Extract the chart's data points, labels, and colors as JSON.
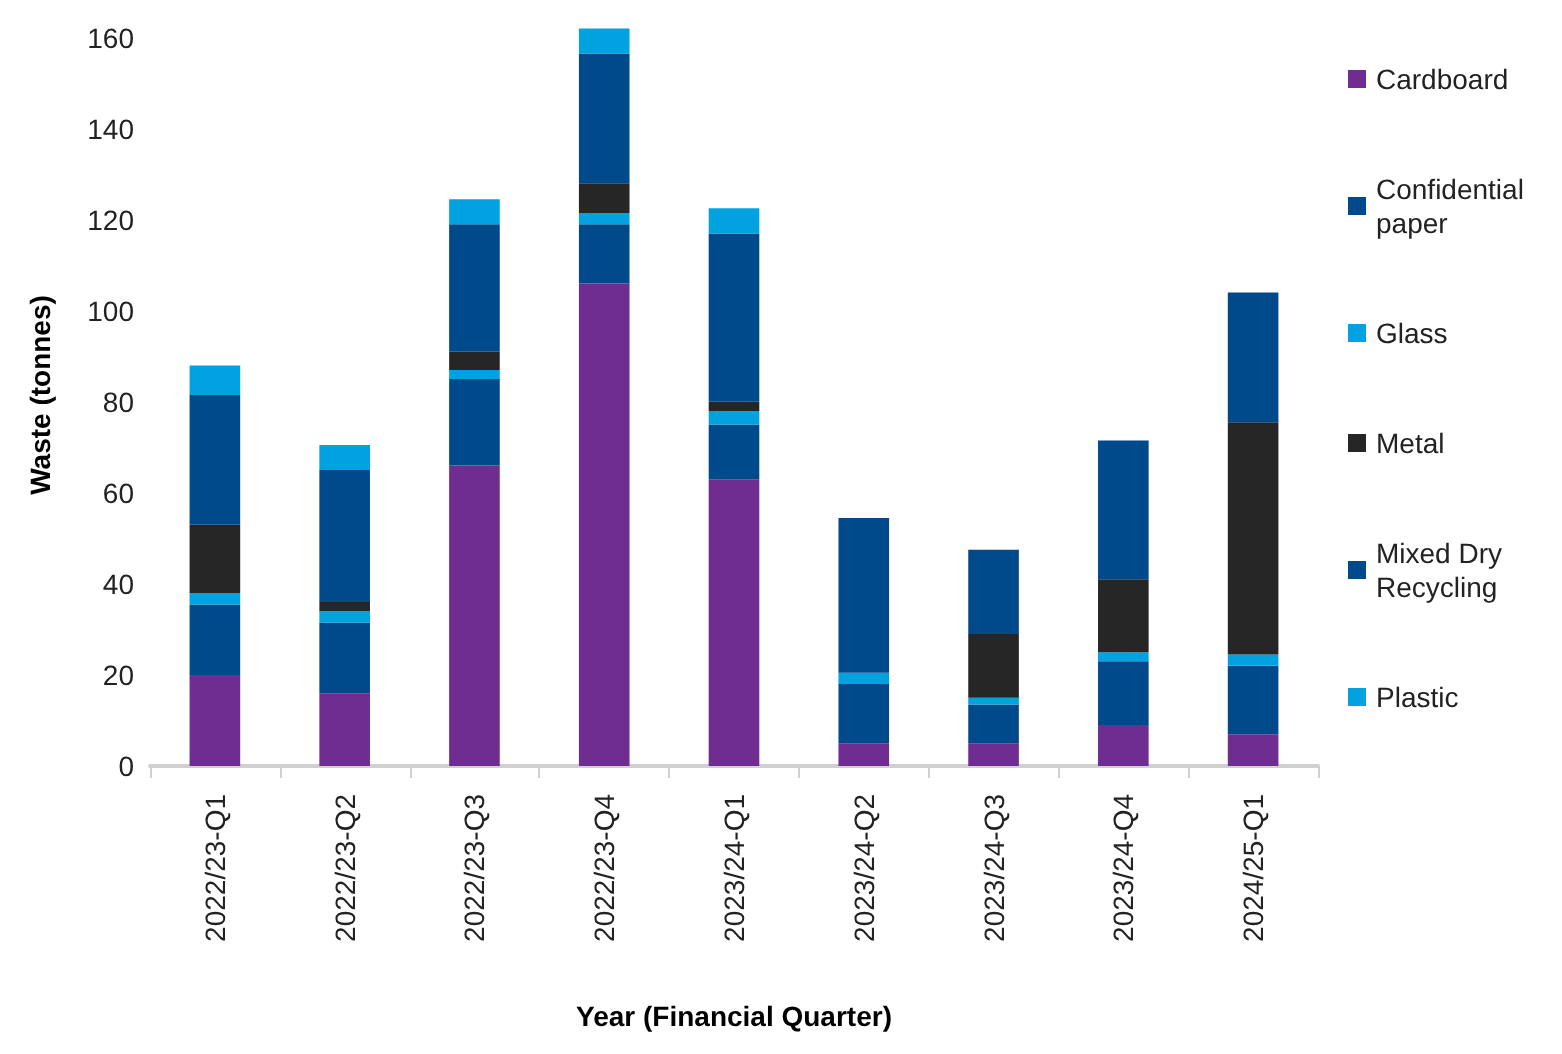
{
  "chart_data": {
    "type": "bar",
    "stacked": true,
    "xlabel": "Year (Financial Quarter)",
    "ylabel": "Waste (tonnes)",
    "categories": [
      "2022/23-Q1",
      "2022/23-Q2",
      "2022/23-Q3",
      "2022/23-Q4",
      "2023/24-Q1",
      "2023/24-Q2",
      "2023/24-Q3",
      "2023/24-Q4",
      "2024/25-Q1"
    ],
    "series": [
      {
        "name": "Cardboard",
        "color": "#6f2c91",
        "values": [
          20,
          16,
          66,
          106,
          63,
          5,
          5,
          9,
          7
        ]
      },
      {
        "name": "Confidential paper",
        "color": "#00498a",
        "values": [
          15.5,
          15.5,
          19,
          13,
          12,
          13,
          8.5,
          14,
          15
        ]
      },
      {
        "name": "Glass",
        "color": "#00a3e0",
        "values": [
          2.5,
          2.5,
          2,
          2.5,
          3,
          2.5,
          1.5,
          2,
          2.5
        ]
      },
      {
        "name": "Metal",
        "color": "#262626",
        "values": [
          15,
          2,
          4,
          6.5,
          2,
          null,
          14,
          16,
          51
        ]
      },
      {
        "name": "Mixed Dry Recycling",
        "color": "#00498a",
        "values": [
          28.5,
          29,
          28,
          28.5,
          37,
          34,
          18.5,
          30.5,
          28.5
        ]
      },
      {
        "name": "Plastic",
        "color": "#00a3e0",
        "values": [
          6.5,
          5.5,
          5.5,
          5.5,
          5.5,
          null,
          null,
          null,
          null
        ]
      }
    ],
    "ylim": [
      0,
      163
    ],
    "yticks": [
      0,
      20,
      40,
      60,
      80,
      100,
      120,
      140,
      160
    ],
    "grid": false,
    "legend": "right"
  }
}
